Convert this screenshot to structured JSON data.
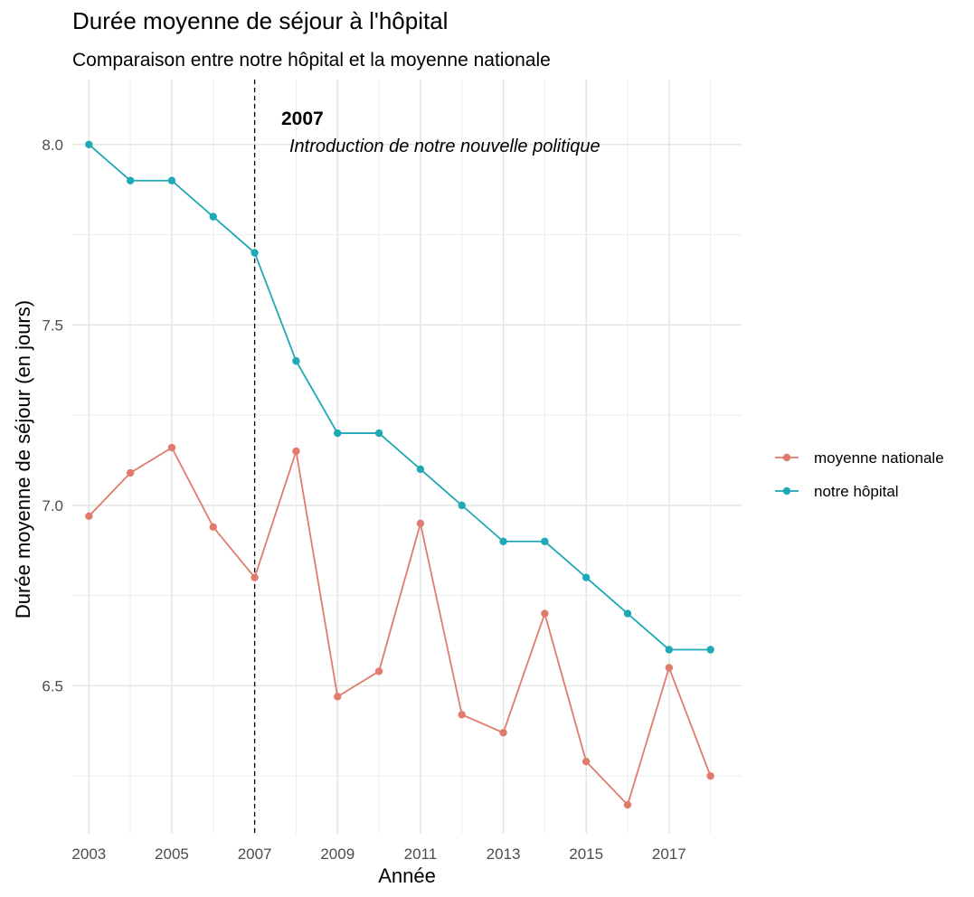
{
  "chart_data": {
    "type": "line",
    "title": "Durée moyenne de séjour à l'hôpital",
    "subtitle": "Comparaison entre notre hôpital et la moyenne nationale",
    "xlabel": "Année",
    "ylabel": "Durée moyenne de séjour (en jours)",
    "x": [
      2003,
      2004,
      2005,
      2006,
      2007,
      2008,
      2009,
      2010,
      2011,
      2012,
      2013,
      2014,
      2015,
      2016,
      2017,
      2018
    ],
    "x_ticks": [
      "2003",
      "2005",
      "2007",
      "2009",
      "2011",
      "2013",
      "2015",
      "2017"
    ],
    "y_ticks": [
      "6.5",
      "7.0",
      "7.5",
      "8.0"
    ],
    "xlim": [
      2002.6,
      2018.75
    ],
    "ylim": [
      6.09,
      8.18
    ],
    "grid": true,
    "legend_position": "right",
    "series": [
      {
        "name": "moyenne nationale",
        "color": "#E07B6D",
        "values": [
          6.97,
          7.09,
          7.16,
          6.94,
          6.8,
          7.15,
          6.47,
          6.54,
          6.95,
          6.42,
          6.37,
          6.7,
          6.29,
          6.17,
          6.55,
          6.25
        ]
      },
      {
        "name": "notre hôpital",
        "color": "#1FA8B5",
        "values": [
          8.0,
          7.9,
          7.9,
          7.8,
          7.7,
          7.4,
          7.2,
          7.2,
          7.1,
          7.0,
          6.9,
          6.9,
          6.8,
          6.7,
          6.6,
          6.6
        ]
      }
    ],
    "annotation": {
      "x": 2007,
      "year_label": "2007",
      "text": "Introduction de notre nouvelle politique"
    }
  }
}
